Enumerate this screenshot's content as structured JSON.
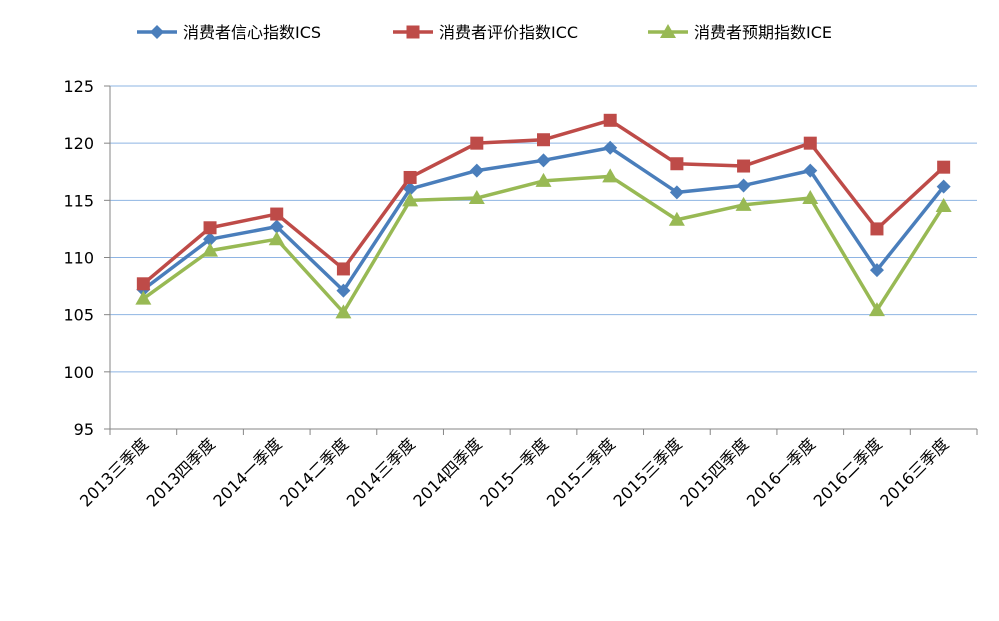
{
  "chart_data": {
    "type": "line",
    "categories": [
      "2013三季度",
      "2013四季度",
      "2014一季度",
      "2014二季度",
      "2014三季度",
      "2014四季度",
      "2015一季度",
      "2015二季度",
      "2015三季度",
      "2015四季度",
      "2016一季度",
      "2016二季度",
      "2016三季度"
    ],
    "series": [
      {
        "name": "消费者信心指数ICS",
        "color": "#4a7ebb",
        "marker": "diamond",
        "values": [
          107.2,
          111.6,
          112.7,
          107.1,
          116.0,
          117.6,
          118.5,
          119.6,
          115.7,
          116.3,
          117.6,
          108.9,
          116.2
        ]
      },
      {
        "name": "消费者评价指数ICC",
        "color": "#be4b48",
        "marker": "square",
        "values": [
          107.7,
          112.6,
          113.8,
          109.0,
          117.0,
          120.0,
          120.3,
          122.0,
          118.2,
          118.0,
          120.0,
          112.5,
          117.9
        ]
      },
      {
        "name": "消费者预期指数ICE",
        "color": "#98b954",
        "marker": "triangle",
        "values": [
          106.4,
          110.6,
          111.6,
          105.2,
          115.0,
          115.2,
          116.7,
          117.1,
          113.3,
          114.6,
          115.2,
          105.4,
          114.5
        ]
      }
    ],
    "ylim": [
      95,
      125
    ],
    "yticks": [
      95,
      100,
      105,
      110,
      115,
      120,
      125
    ],
    "grid": true,
    "legend": "top",
    "title": "",
    "xlabel": "",
    "ylabel": ""
  }
}
